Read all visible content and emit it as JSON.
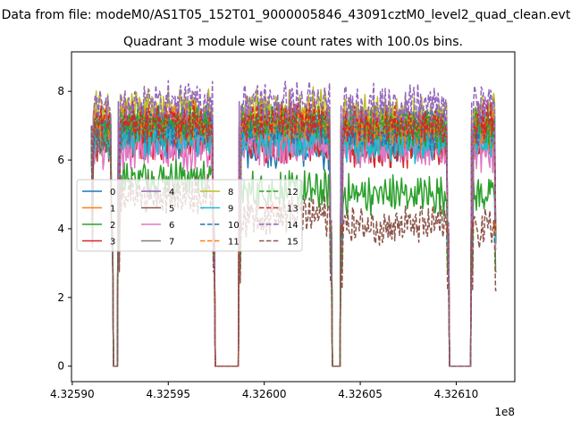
{
  "chart_data": {
    "type": "line",
    "suptitle": "Data from file: modeM0/AS1T05_152T01_9000005846_43091cztM0_level2_quad_clean.evt",
    "title": "Quadrant 3 module wise count rates with 100.0s bins.",
    "xlabel": "",
    "ylabel": "",
    "x_offset_label": "1e8",
    "xlim": [
      4.3258996,
      4.3261305
    ],
    "ylim": [
      -0.45,
      9.15
    ],
    "x_ticks": [
      4.3259,
      4.32595,
      4.326,
      4.32605,
      4.3261
    ],
    "x_tick_labels": [
      "4.32590",
      "4.32595",
      "4.32600",
      "4.32605",
      "4.32610"
    ],
    "y_ticks": [
      0,
      2,
      4,
      6,
      8
    ],
    "y_tick_labels": [
      "0",
      "2",
      "4",
      "6",
      "8"
    ],
    "legend_position": "center-left",
    "segments": [
      [
        4.32591,
        4.325921
      ],
      [
        4.325924,
        4.325974
      ],
      [
        4.325987,
        4.326035
      ],
      [
        4.32604,
        4.326096
      ],
      [
        4.326108,
        4.326121
      ]
    ],
    "series": [
      {
        "name": "0",
        "color": "#1f77b4",
        "dash": "solid",
        "base": [
          6.7,
          6.6,
          6.3,
          6.5,
          6.8
        ]
      },
      {
        "name": "1",
        "color": "#ff7f0e",
        "dash": "solid",
        "base": [
          6.8,
          6.9,
          6.9,
          6.8,
          6.7
        ]
      },
      {
        "name": "2",
        "color": "#2ca02c",
        "dash": "solid",
        "base": [
          6.6,
          5.5,
          5.1,
          5.0,
          5.0
        ]
      },
      {
        "name": "3",
        "color": "#d62728",
        "dash": "solid",
        "base": [
          6.5,
          6.6,
          6.5,
          6.3,
          6.6
        ]
      },
      {
        "name": "4",
        "color": "#9467bd",
        "dash": "solid",
        "base": [
          7.0,
          7.1,
          7.0,
          7.0,
          7.2
        ]
      },
      {
        "name": "5",
        "color": "#8c564b",
        "dash": "solid",
        "base": [
          6.8,
          6.9,
          6.8,
          6.7,
          6.7
        ]
      },
      {
        "name": "6",
        "color": "#e377c2",
        "dash": "solid",
        "base": [
          6.3,
          6.3,
          6.4,
          6.3,
          6.2
        ]
      },
      {
        "name": "7",
        "color": "#7f7f7f",
        "dash": "solid",
        "base": [
          6.9,
          7.0,
          7.0,
          6.8,
          6.8
        ]
      },
      {
        "name": "8",
        "color": "#bcbd22",
        "dash": "solid",
        "base": [
          7.4,
          7.5,
          7.5,
          7.3,
          7.4
        ]
      },
      {
        "name": "9",
        "color": "#17becf",
        "dash": "solid",
        "base": [
          6.6,
          6.7,
          6.6,
          6.5,
          6.5
        ]
      },
      {
        "name": "10",
        "color": "#1f77b4",
        "dash": "dashed",
        "base": [
          6.9,
          7.0,
          7.0,
          6.9,
          6.9
        ]
      },
      {
        "name": "11",
        "color": "#ff7f0e",
        "dash": "dashed",
        "base": [
          7.1,
          7.1,
          7.1,
          7.0,
          7.0
        ]
      },
      {
        "name": "12",
        "color": "#2ca02c",
        "dash": "dashed",
        "base": [
          7.0,
          7.1,
          7.1,
          7.0,
          7.0
        ]
      },
      {
        "name": "13",
        "color": "#d62728",
        "dash": "dashed",
        "base": [
          7.1,
          7.1,
          7.1,
          7.0,
          7.1
        ]
      },
      {
        "name": "14",
        "color": "#9467bd",
        "dash": "dashed",
        "base": [
          7.6,
          7.7,
          7.7,
          7.6,
          7.7
        ]
      },
      {
        "name": "15",
        "color": "#8c564b",
        "dash": "dashed",
        "base": [
          6.5,
          5.0,
          4.4,
          4.1,
          4.0
        ]
      }
    ]
  }
}
